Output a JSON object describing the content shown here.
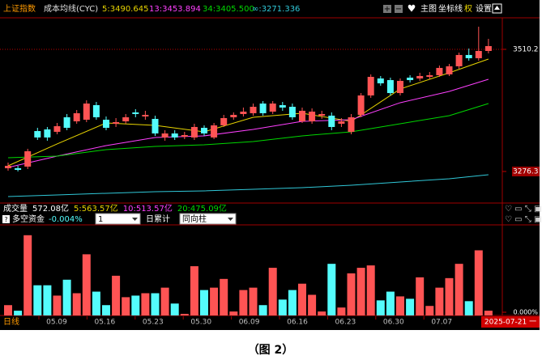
{
  "toolbar": {
    "symbol": "上证指数",
    "indicator": "成本均线(CYC)",
    "buttons": [
      "主图",
      "坐标线",
      "权",
      "设置"
    ]
  },
  "price_chart": {
    "type": "candlestick",
    "open": [
      3282.5,
      3282.5,
      3285.6,
      3353.7,
      3356.8,
      3352.2,
      3380.1,
      3372.3,
      3375.4,
      3403.3,
      3375.4,
      3367.7,
      3372.3,
      3389.4,
      3381.6,
      3377.0,
      3341.4,
      3349.1,
      3342.9,
      3341.4,
      3359.9,
      3341.4,
      3364.6,
      3380.1,
      3386.3,
      3387.8,
      3406.4,
      3390.9,
      3403.3,
      3400.2,
      3372.3,
      3372.3,
      3383.2,
      3383.2,
      3367.7,
      3352.2,
      3384.7,
      3421.9,
      3454.4,
      3451.3,
      3426.5,
      3456.0,
      3454.4,
      3457.5,
      3460.6,
      3462.2,
      3477.7,
      3499.4,
      3493.2,
      3507.1
    ],
    "close": [
      3287.1,
      3279.4,
      3315.0,
      3341.4,
      3341.4,
      3363.0,
      3359.9,
      3387.8,
      3406.4,
      3380.1,
      3359.9,
      3370.8,
      3380.1,
      3386.3,
      3384.7,
      3349.1,
      3349.1,
      3341.4,
      3346.0,
      3361.5,
      3349.1,
      3364.6,
      3378.5,
      3384.7,
      3390.9,
      3400.2,
      3387.8,
      3406.4,
      3398.7,
      3380.1,
      3392.5,
      3390.9,
      3386.3,
      3361.5,
      3372.3,
      3380.1,
      3421.9,
      3457.5,
      3445.1,
      3426.5,
      3449.8,
      3451.3,
      3459.1,
      3460.6,
      3474.6,
      3477.7,
      3499.4,
      3493.2,
      3507.1,
      3516.4
    ],
    "high": [
      3293.3,
      3287.1,
      3319.7,
      3359.9,
      3361.5,
      3369.2,
      3386.3,
      3394.0,
      3412.6,
      3409.5,
      3381.6,
      3378.5,
      3386.3,
      3395.6,
      3392.5,
      3383.2,
      3355.3,
      3355.3,
      3352.2,
      3367.7,
      3364.6,
      3369.2,
      3384.7,
      3389.4,
      3398.7,
      3406.4,
      3411.1,
      3411.1,
      3409.5,
      3406.4,
      3398.7,
      3397.1,
      3392.5,
      3389.4,
      3378.5,
      3386.3,
      3426.5,
      3462.2,
      3459.1,
      3456.0,
      3454.4,
      3460.6,
      3465.3,
      3466.8,
      3479.2,
      3482.3,
      3504.0,
      3511.7,
      3553.6,
      3530.3
    ],
    "low": [
      3277.8,
      3276.3,
      3281.0,
      3336.7,
      3335.2,
      3347.6,
      3355.3,
      3367.7,
      3370.8,
      3375.4,
      3355.3,
      3361.5,
      3367.7,
      3380.1,
      3375.4,
      3344.5,
      3335.2,
      3336.7,
      3338.3,
      3336.7,
      3344.5,
      3338.3,
      3361.5,
      3375.4,
      3381.6,
      3383.2,
      3383.2,
      3386.3,
      3392.5,
      3375.4,
      3369.2,
      3367.7,
      3377.0,
      3355.3,
      3361.5,
      3347.6,
      3380.1,
      3417.3,
      3440.5,
      3421.9,
      3421.9,
      3446.7,
      3449.8,
      3452.9,
      3457.5,
      3459.1,
      3473.0,
      3488.5,
      3488.5,
      3502.5
    ],
    "up_color": "#ff5454",
    "down_color": "#54fcfc",
    "ylim": [
      3217.4,
      3570.6
    ],
    "yticks": [
      3276.3,
      3510.2
    ],
    "ma_x": [
      0,
      5,
      10,
      15,
      20,
      25,
      30,
      35,
      40,
      45,
      49
    ],
    "ma_series": [
      {
        "name": "5:3490.645",
        "color": "#e8d400",
        "values": [
          3287.1,
          3329.0,
          3369.2,
          3364.6,
          3352.2,
          3380.1,
          3387.8,
          3372.3,
          3434.3,
          3465.3,
          3491.6
        ]
      },
      {
        "name": "13:3453.894",
        "color": "#ff40ff",
        "values": [
          3284.0,
          3305.7,
          3325.9,
          3341.4,
          3344.5,
          3356.8,
          3372.3,
          3375.4,
          3408.0,
          3429.6,
          3452.9
        ]
      },
      {
        "name": "34:3405.500",
        "color": "#00d800",
        "values": [
          3302.6,
          3305.7,
          3318.1,
          3324.3,
          3327.4,
          3333.6,
          3344.5,
          3352.2,
          3367.7,
          3383.2,
          3406.4
        ]
      },
      {
        "name": "∞:3271.336",
        "color": "#30c8d8",
        "values": [
          3228.3,
          3231.4,
          3234.5,
          3237.6,
          3239.1,
          3242.2,
          3245.3,
          3250.0,
          3256.2,
          3262.4,
          3270.1
        ]
      }
    ]
  },
  "volume_header": [
    {
      "text": "成交量",
      "color": "#ffffff"
    },
    {
      "text": "572.08亿",
      "color": "#ffffff"
    },
    {
      "text": "5:563.57亿",
      "color": "#e8d400"
    },
    {
      "text": "10:513.57亿",
      "color": "#ff40ff"
    },
    {
      "text": "20:475.09亿",
      "color": "#00d800"
    }
  ],
  "indicator_bar": {
    "name": "多空资金",
    "value": "-0.004%",
    "period": "1",
    "mode": "日累计",
    "style": "同向柱"
  },
  "flow_chart": {
    "type": "bar",
    "values": [
      13,
      6,
      101,
      38,
      38,
      25,
      45,
      28,
      77,
      30,
      13,
      50,
      23,
      25,
      28,
      28,
      35,
      15,
      2,
      62,
      32,
      35,
      46,
      5,
      32,
      35,
      13,
      60,
      20,
      32,
      40,
      26,
      5,
      65,
      10,
      53,
      60,
      63,
      19,
      30,
      24,
      21,
      48,
      12,
      35,
      47,
      65,
      18,
      82,
      6
    ],
    "ylim": [
      0,
      112
    ],
    "yticks": [
      {
        "value": 0,
        "label": "0.000%"
      }
    ]
  },
  "time_axis": {
    "label": "日线",
    "dates": [
      "05.09",
      "05.16",
      "05.23",
      "05.30",
      "06.09",
      "06.16",
      "06.23",
      "06.30",
      "07.07"
    ],
    "current": "2025-07-21 一"
  },
  "caption": "（图 2）"
}
